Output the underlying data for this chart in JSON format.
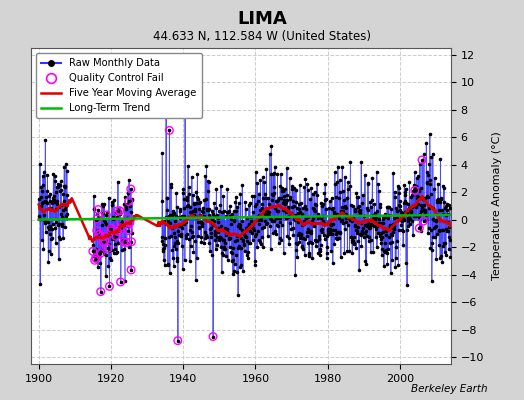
{
  "title": "LIMA",
  "subtitle": "44.633 N, 112.584 W (United States)",
  "ylabel": "Temperature Anomaly (°C)",
  "credit": "Berkeley Earth",
  "xlim": [
    1898,
    2014
  ],
  "ylim": [
    -10.5,
    12.5
  ],
  "yticks": [
    -10,
    -8,
    -6,
    -4,
    -2,
    0,
    2,
    4,
    6,
    8,
    10,
    12
  ],
  "xticks": [
    1900,
    1920,
    1940,
    1960,
    1980,
    2000
  ],
  "start_year": 1900,
  "end_year": 2013,
  "bg_color": "#d4d4d4",
  "plot_bg_color": "#ffffff",
  "raw_color": "#3333ff",
  "ma_color": "#dd0000",
  "trend_color": "#00bb00",
  "qc_color": "#ff00ff",
  "seed": 12345
}
